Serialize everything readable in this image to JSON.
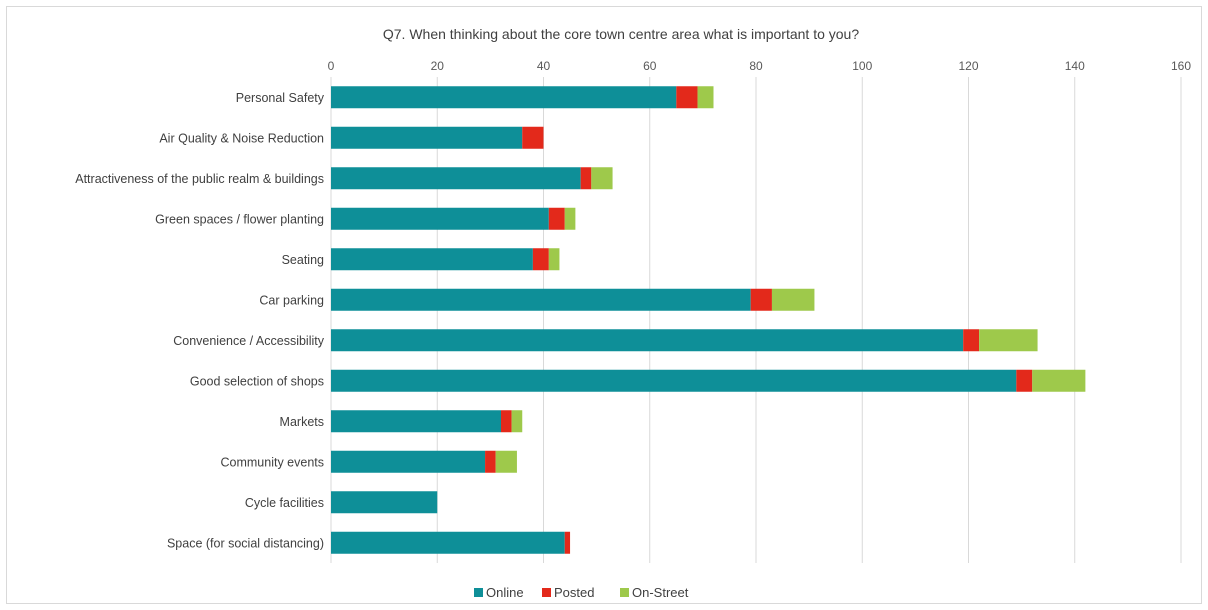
{
  "chart_data": {
    "type": "bar",
    "orientation": "horizontal",
    "stacked": true,
    "title": "Q7. When thinking about the core town centre area what is important to you?",
    "xlim": [
      0,
      160
    ],
    "xticks": [
      "0",
      "20",
      "40",
      "60",
      "80",
      "100",
      "120",
      "140",
      "160"
    ],
    "grid": true,
    "legend_position": "bottom",
    "categories": [
      "Personal Safety",
      "Air Quality & Noise Reduction",
      "Attractiveness of the public realm & buildings",
      "Green spaces / flower planting",
      "Seating",
      "Car parking",
      "Convenience / Accessibility",
      "Good selection of shops",
      "Markets",
      "Community events",
      "Cycle facilities",
      "Space (for social distancing)"
    ],
    "series": [
      {
        "name": "Online",
        "color": "#0e8f98",
        "values": [
          65,
          36,
          47,
          41,
          38,
          79,
          119,
          129,
          32,
          29,
          20,
          44
        ]
      },
      {
        "name": "Posted",
        "color": "#e3291b",
        "values": [
          4,
          4,
          2,
          3,
          3,
          4,
          3,
          3,
          2,
          2,
          0,
          1
        ]
      },
      {
        "name": "On-Street",
        "color": "#9ec94b",
        "values": [
          3,
          0,
          4,
          2,
          2,
          8,
          11,
          10,
          2,
          4,
          0,
          0
        ]
      }
    ]
  }
}
